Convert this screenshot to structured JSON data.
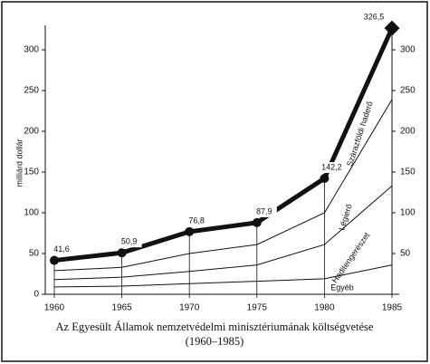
{
  "chart_data": {
    "type": "stacked-line",
    "title": "Az Egyesült Államok nemzetvédelmi minisztériumának költségvetése",
    "subtitle": "(1960–1985)",
    "y_label": "milliárd dollár",
    "categories": [
      "1960",
      "1965",
      "1970",
      "1975",
      "1980",
      "1985"
    ],
    "series": [
      {
        "name": "Egyéb",
        "color": "#111111",
        "values": [
          9,
          10,
          13,
          16,
          19,
          36
        ]
      },
      {
        "name": "Haditengerészet",
        "color": "#111111",
        "values": [
          9,
          11,
          15,
          20,
          42,
          97
        ]
      },
      {
        "name": "Légierő",
        "color": "#111111",
        "values": [
          11,
          12,
          22,
          25,
          39,
          106
        ]
      },
      {
        "name": "Szárazföldi haderő",
        "color": "#111111",
        "values": [
          12.6,
          17.9,
          26.8,
          26.9,
          42.2,
          87.5
        ]
      }
    ],
    "totals": [
      41.6,
      50.9,
      76.8,
      87.9,
      142.2,
      326.5
    ],
    "total_labels": [
      "41,6",
      "50,9",
      "76,8",
      "87,9",
      "142,2",
      "326,5"
    ],
    "ylim": [
      0,
      330
    ],
    "yticks": [
      0,
      50,
      100,
      150,
      200,
      250,
      300
    ],
    "y2lim": [
      0,
      330
    ],
    "y2ticks": [
      50,
      100,
      150,
      200,
      250,
      300
    ]
  }
}
